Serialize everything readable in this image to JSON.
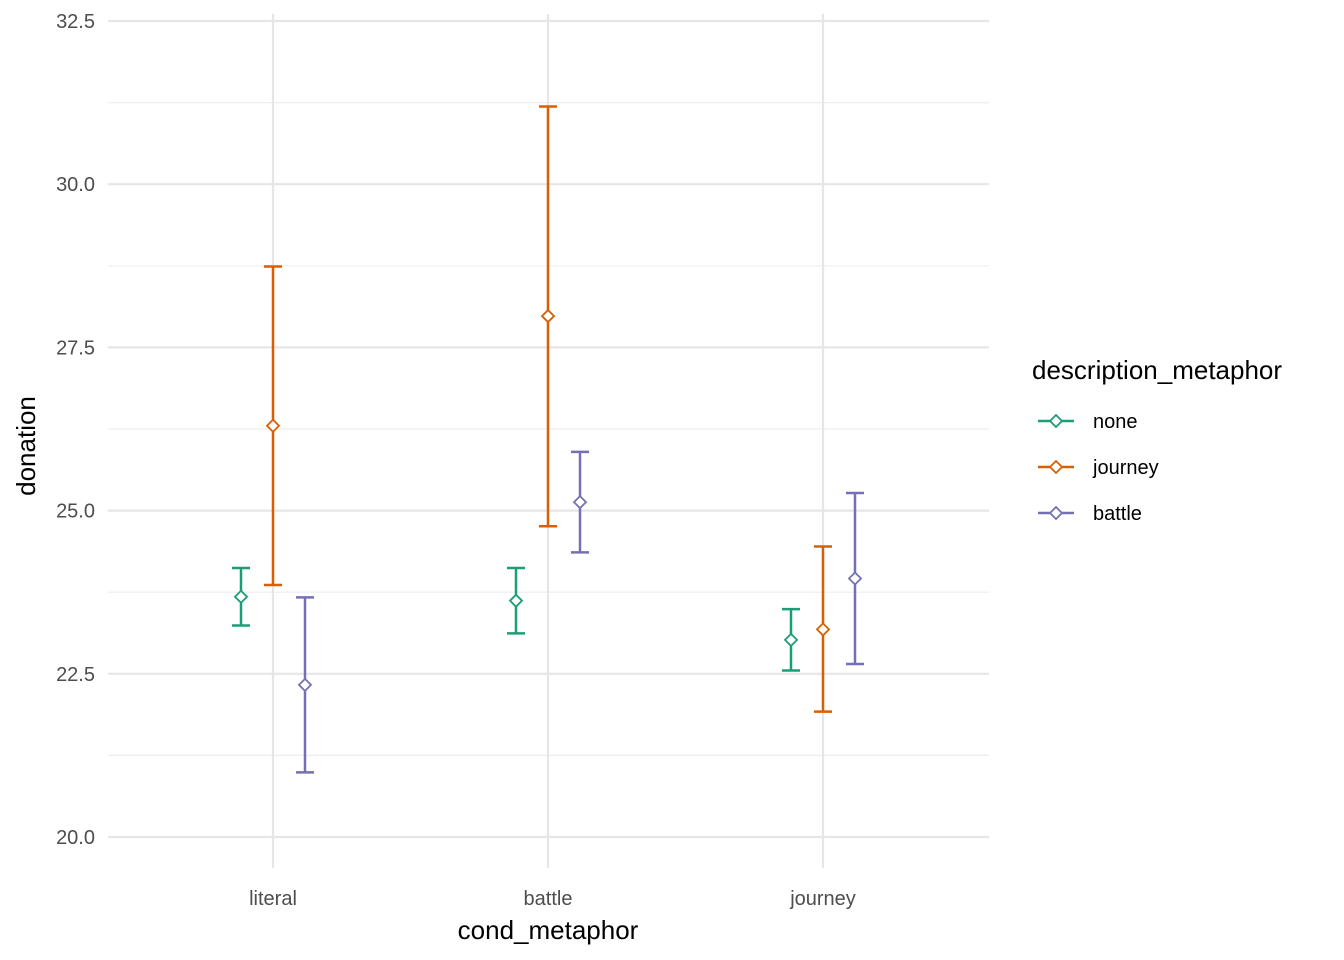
{
  "chart_data": {
    "type": "errorbar",
    "xlabel": "cond_metaphor",
    "ylabel": "donation",
    "ylim": [
      19.5,
      32.6
    ],
    "y_ticks": [
      "20.0",
      "22.5",
      "25.0",
      "27.5",
      "30.0",
      "32.5"
    ],
    "y_tick_values": [
      20.0,
      22.5,
      25.0,
      27.5,
      30.0,
      32.5
    ],
    "categories": [
      "literal",
      "battle",
      "journey"
    ],
    "grid": true,
    "legend": {
      "title": "description_metaphor",
      "position": "right"
    },
    "series": [
      {
        "name": "none",
        "color": "#1b9e77",
        "points": [
          {
            "x": "literal",
            "mean": 23.68,
            "lower": 23.24,
            "upper": 24.12
          },
          {
            "x": "battle",
            "mean": 23.62,
            "lower": 23.12,
            "upper": 24.12
          },
          {
            "x": "journey",
            "mean": 23.02,
            "lower": 22.55,
            "upper": 23.49
          }
        ]
      },
      {
        "name": "journey",
        "color": "#d95f02",
        "points": [
          {
            "x": "literal",
            "mean": 26.3,
            "lower": 23.86,
            "upper": 28.74
          },
          {
            "x": "battle",
            "mean": 27.98,
            "lower": 24.76,
            "upper": 31.19
          },
          {
            "x": "journey",
            "mean": 23.18,
            "lower": 21.92,
            "upper": 24.45
          }
        ]
      },
      {
        "name": "battle",
        "color": "#7570b3",
        "points": [
          {
            "x": "literal",
            "mean": 22.33,
            "lower": 20.99,
            "upper": 23.67
          },
          {
            "x": "battle",
            "mean": 25.13,
            "lower": 24.36,
            "upper": 25.9
          },
          {
            "x": "journey",
            "mean": 23.96,
            "lower": 22.65,
            "upper": 25.27
          }
        ]
      }
    ]
  }
}
